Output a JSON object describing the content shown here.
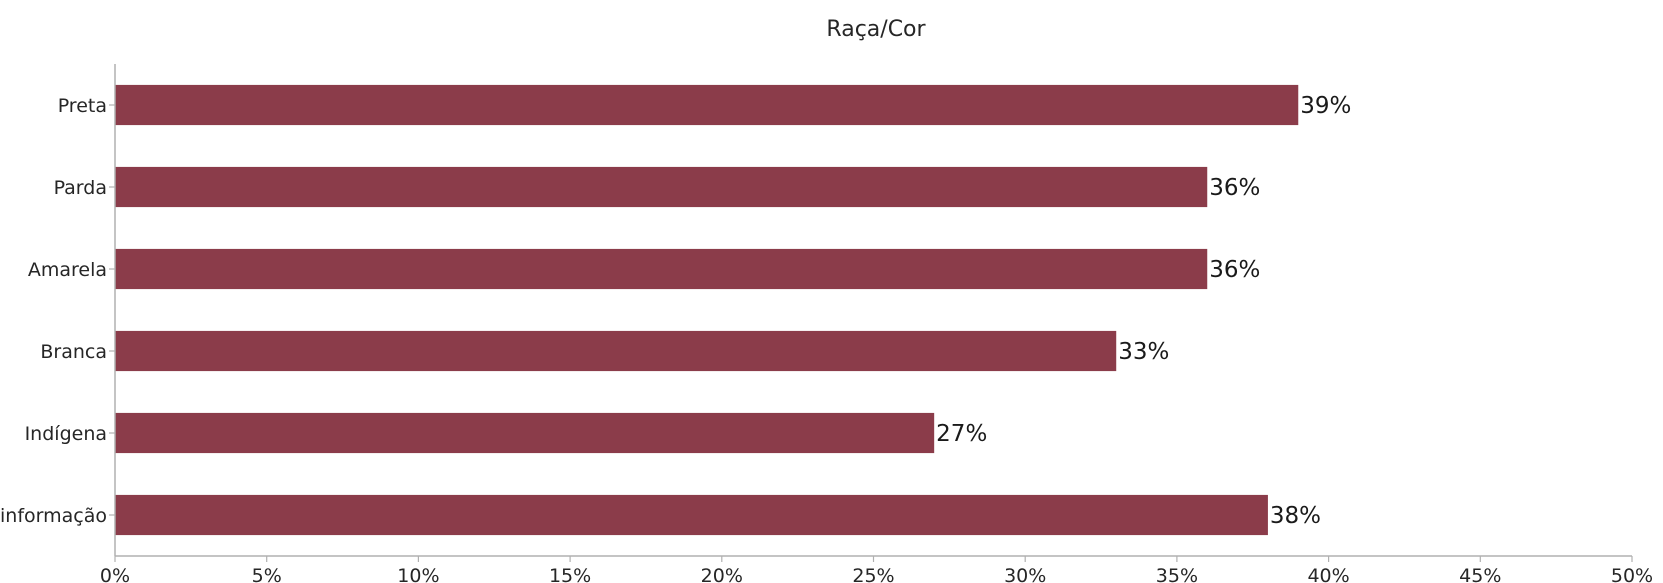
{
  "chart_data": {
    "type": "bar",
    "orientation": "horizontal",
    "title": "Raça/Cor",
    "xlabel": "",
    "ylabel": "",
    "categories": [
      "Preta",
      "Parda",
      "Amarela",
      "Branca",
      "Indígena",
      "Sem informação"
    ],
    "values": [
      39,
      36,
      36,
      33,
      27,
      38
    ],
    "value_labels": [
      "39%",
      "36%",
      "36%",
      "33%",
      "27%",
      "38%"
    ],
    "xlim": [
      0,
      50
    ],
    "xticks": [
      0,
      5,
      10,
      15,
      20,
      25,
      30,
      35,
      40,
      45,
      50
    ],
    "xtick_labels": [
      "0%",
      "5%",
      "10%",
      "15%",
      "20%",
      "25%",
      "30%",
      "35%",
      "40%",
      "45%",
      "50%"
    ],
    "bar_color": "#8b3c4a",
    "grid": false,
    "legend": "none"
  }
}
